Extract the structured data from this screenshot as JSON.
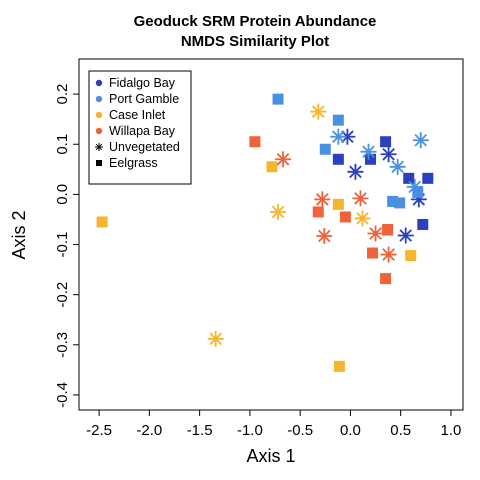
{
  "chart_data": {
    "type": "scatter",
    "title_line1": "Geoduck SRM Protein Abundance",
    "title_line2": "NMDS Similarity Plot",
    "xlabel": "Axis 1",
    "ylabel": "Axis 2",
    "xlim": [
      -2.7,
      1.12
    ],
    "ylim": [
      -0.43,
      0.27
    ],
    "xticks": [
      -2.5,
      -2.0,
      -1.5,
      -1.0,
      -0.5,
      0.0,
      0.5,
      1.0
    ],
    "xtick_labels": [
      "-2.5",
      "-2.0",
      "-1.5",
      "-1.0",
      "-0.5",
      "0.0",
      "0.5",
      "1.0"
    ],
    "yticks": [
      -0.4,
      -0.3,
      -0.2,
      -0.1,
      0.0,
      0.1,
      0.2
    ],
    "ytick_labels": [
      "-0.4",
      "-0.3",
      "-0.2",
      "-0.1",
      "0.0",
      "0.1",
      "0.2"
    ],
    "legend_position": "top-left",
    "legend": {
      "sites": [
        {
          "label": "Fidalgo Bay",
          "color": "#2b3fbf"
        },
        {
          "label": "Port Gamble",
          "color": "#4a90e2"
        },
        {
          "label": "Case Inlet",
          "color": "#f7b52b"
        },
        {
          "label": "Willapa Bay",
          "color": "#f0623a"
        }
      ],
      "habitats": [
        {
          "label": "Unvegetated",
          "marker": "asterisk"
        },
        {
          "label": "Eelgrass",
          "marker": "square"
        }
      ]
    },
    "series": [
      {
        "site": "Fidalgo Bay",
        "habitat": "Eelgrass",
        "color": "#2b3fbf",
        "marker": "square",
        "points": [
          [
            0.35,
            0.105
          ],
          [
            0.2,
            0.07
          ],
          [
            -0.12,
            0.07
          ],
          [
            0.58,
            0.032
          ],
          [
            0.77,
            0.032
          ],
          [
            0.72,
            -0.06
          ]
        ]
      },
      {
        "site": "Fidalgo Bay",
        "habitat": "Unvegetated",
        "color": "#2b3fbf",
        "marker": "asterisk",
        "points": [
          [
            -0.03,
            0.115
          ],
          [
            0.38,
            0.08
          ],
          [
            0.05,
            0.045
          ],
          [
            0.68,
            -0.01
          ],
          [
            0.55,
            -0.082
          ]
        ]
      },
      {
        "site": "Port Gamble",
        "habitat": "Eelgrass",
        "color": "#4a90e2",
        "marker": "square",
        "points": [
          [
            -0.72,
            0.19
          ],
          [
            -0.12,
            0.148
          ],
          [
            -0.25,
            0.09
          ],
          [
            0.42,
            -0.014
          ],
          [
            0.49,
            -0.017
          ],
          [
            0.67,
            0.004
          ]
        ]
      },
      {
        "site": "Port Gamble",
        "habitat": "Unvegetated",
        "color": "#4a90e2",
        "marker": "asterisk",
        "points": [
          [
            0.7,
            0.108
          ],
          [
            -0.12,
            0.115
          ],
          [
            0.18,
            0.085
          ],
          [
            0.47,
            0.055
          ],
          [
            0.64,
            0.015
          ]
        ]
      },
      {
        "site": "Case Inlet",
        "habitat": "Eelgrass",
        "color": "#f7b52b",
        "marker": "square",
        "points": [
          [
            -2.47,
            -0.055
          ],
          [
            -0.78,
            0.055
          ],
          [
            -0.12,
            -0.02
          ],
          [
            0.37,
            -0.072
          ],
          [
            0.6,
            -0.122
          ],
          [
            -0.11,
            -0.343
          ]
        ]
      },
      {
        "site": "Case Inlet",
        "habitat": "Unvegetated",
        "color": "#f7b52b",
        "marker": "asterisk",
        "points": [
          [
            -0.32,
            0.165
          ],
          [
            -0.72,
            -0.035
          ],
          [
            0.12,
            -0.048
          ],
          [
            -1.34,
            -0.288
          ]
        ]
      },
      {
        "site": "Willapa Bay",
        "habitat": "Eelgrass",
        "color": "#f0623a",
        "marker": "square",
        "points": [
          [
            -0.95,
            0.105
          ],
          [
            -0.32,
            -0.035
          ],
          [
            -0.05,
            -0.045
          ],
          [
            0.22,
            -0.117
          ],
          [
            0.35,
            -0.168
          ],
          [
            0.37,
            -0.07
          ]
        ]
      },
      {
        "site": "Willapa Bay",
        "habitat": "Unvegetated",
        "color": "#f0623a",
        "marker": "asterisk",
        "points": [
          [
            -0.67,
            0.07
          ],
          [
            -0.28,
            -0.01
          ],
          [
            0.1,
            -0.008
          ],
          [
            -0.26,
            -0.083
          ],
          [
            0.25,
            -0.078
          ],
          [
            0.38,
            -0.12
          ]
        ]
      }
    ]
  }
}
